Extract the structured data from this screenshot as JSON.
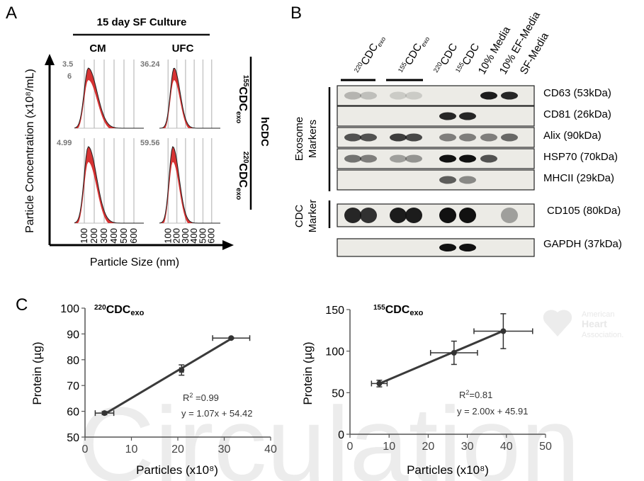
{
  "panel_letters": {
    "a": "A",
    "b": "B",
    "c": "C"
  },
  "panelA": {
    "culture_title": "15 day SF Culture",
    "col_cm": "CM",
    "col_ufc": "UFC",
    "y_label": "Particle Concentration (x10⁸/mL)",
    "x_label": "Particle Size (nm)",
    "hcdc": "hCDC",
    "row_labels": [
      {
        "sup": "155",
        "main": "CDC",
        "sub": "exo"
      },
      {
        "sup": "220",
        "main": "CDC",
        "sub": "exo"
      }
    ],
    "plot_max_values": [
      "3.5",
      "6",
      "36.24",
      "4.99",
      "59.56"
    ],
    "x_ticks": [
      "100",
      "200",
      "300",
      "400",
      "500",
      "600"
    ]
  },
  "panelB": {
    "lane_labels": [
      {
        "sup": "220",
        "main": "CDC",
        "sub": "exo"
      },
      {
        "sup": "155",
        "main": "CDC",
        "sub": "exo"
      },
      {
        "sup": "220",
        "main": "CDC",
        "sub": ""
      },
      {
        "sup": "155",
        "main": "CDC",
        "sub": ""
      },
      {
        "sup": "",
        "main": "10% Media",
        "sub": ""
      },
      {
        "sup": "",
        "main": "10% EF-Media",
        "sub": ""
      },
      {
        "sup": "",
        "main": "SF-Media",
        "sub": ""
      }
    ],
    "blot_labels": [
      "CD63 (53kDa)",
      "CD81 (26kDa)",
      "Alix (90kDa)",
      "HSP70 (70kDa)",
      "MHCII (29kDa)",
      "CD105 (80kDa)",
      "GAPDH (37kDa)"
    ],
    "group_exosome": [
      "Exosome",
      "Markers"
    ],
    "group_cdc": [
      "CDC",
      "Marker"
    ]
  },
  "watermark": {
    "text": "Circulation",
    "aha": [
      "American",
      "Heart",
      "Association."
    ]
  },
  "chart_data": [
    {
      "type": "scatter",
      "title_sup": "220",
      "title_main": "CDC",
      "title_sub": "exo",
      "xlabel": "Particles (x10⁸)",
      "ylabel": "Protein (µg)",
      "xlim": [
        0,
        40
      ],
      "ylim": [
        50,
        100
      ],
      "x_ticks": [
        0,
        10,
        20,
        30,
        40
      ],
      "y_ticks": [
        50,
        60,
        70,
        80,
        90,
        100
      ],
      "points": [
        {
          "x": 4.2,
          "y": 59.3,
          "xerr": 2,
          "yerr": 0.6
        },
        {
          "x": 20.8,
          "y": 76,
          "xerr": 0.4,
          "yerr": 2
        },
        {
          "x": 31.5,
          "y": 88.4,
          "xerr": 4,
          "yerr": 0.3
        }
      ],
      "fit": {
        "slope": 1.07,
        "intercept": 54.42
      },
      "r2_label": "R",
      "r2_sup": "2",
      "r2_value": " =0.99",
      "equation": "y = 1.07x + 54.42"
    },
    {
      "type": "scatter",
      "title_sup": "155",
      "title_main": "CDC",
      "title_sub": "exo",
      "xlabel": "Particles (x10⁸)",
      "ylabel": "Protein (µg)",
      "xlim": [
        0,
        50
      ],
      "ylim": [
        0,
        150
      ],
      "x_ticks": [
        0,
        10,
        20,
        30,
        40,
        50
      ],
      "y_ticks": [
        0,
        50,
        100,
        150
      ],
      "points": [
        {
          "x": 7.5,
          "y": 61,
          "xerr": 2,
          "yerr": 4
        },
        {
          "x": 26.6,
          "y": 98,
          "xerr": 6,
          "yerr": 14
        },
        {
          "x": 39.2,
          "y": 124,
          "xerr": 7.5,
          "yerr": 21
        }
      ],
      "fit": {
        "slope": 2.0,
        "intercept": 45.91
      },
      "r2_label": "R",
      "r2_sup": "2",
      "r2_value": "=0.81",
      "equation": "y = 2.00x + 45.91"
    }
  ]
}
